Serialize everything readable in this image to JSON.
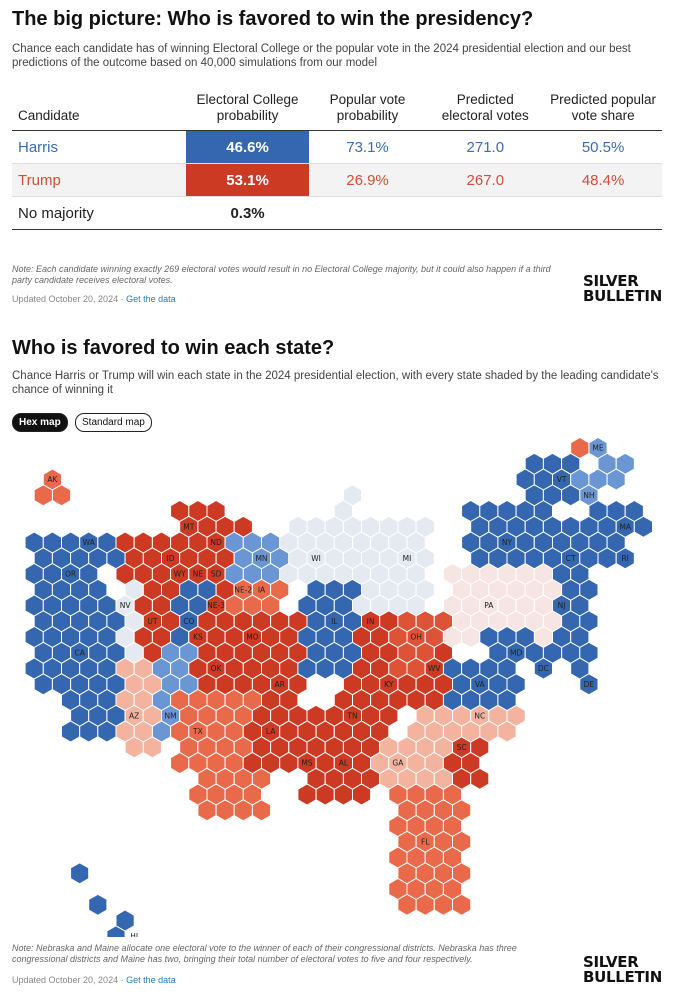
{
  "section1": {
    "title": "The big picture: Who is favored to win the presidency?",
    "subtitle": "Chance each candidate has of winning Electoral College or the popular vote in the 2024 presidential election and our best predictions of the outcome based on 40,000 simulations from our model"
  },
  "table": {
    "headers": [
      "Candidate",
      "Electoral College probability",
      "Popular vote probability",
      "Predicted electoral votes",
      "Predicted popular vote share"
    ],
    "rows": [
      {
        "candidate": "Harris",
        "ec_prob": "46.6%",
        "pop_prob": "73.1%",
        "ev": "271.0",
        "share": "50.5%"
      },
      {
        "candidate": "Trump",
        "ec_prob": "53.1%",
        "pop_prob": "26.9%",
        "ev": "267.0",
        "share": "48.4%"
      },
      {
        "candidate": "No majority",
        "ec_prob": "0.3%",
        "pop_prob": "",
        "ev": "",
        "share": ""
      }
    ],
    "note": "Note: Each candidate winning exactly 269 electoral votes would result in no Electoral College majority, but it could also happen if a third party candidate receives electoral votes.",
    "updated": "Updated October 20, 2024",
    "link": "Get the data"
  },
  "logo": {
    "line1": "SILVER",
    "line2": "BULLETIN"
  },
  "section2": {
    "title": "Who is favored to win each state?",
    "subtitle": "Chance Harris or Trump will win each state in the 2024 presidential election, with every state shaded by the leading candidate's chance of winning it",
    "tab_hex": "Hex map",
    "tab_standard": "Standard map",
    "note": "Note: Nebraska and Maine allocate one electoral vote to the winner of each of their congressional districts. Nebraska has three congressional districts and Maine has two, bringing their total number of electoral votes to five and four respectively.",
    "updated": "Updated October 20, 2024",
    "link": "Get the data"
  },
  "colors": {
    "dem_solid": "#3467b0",
    "dem_likely": "#6a96d4",
    "dem_lean": "#a9c3e8",
    "tossup_dem": "#e4e9f2",
    "tossup_rep": "#f6e5e2",
    "rep_lean": "#f4b39e",
    "rep_likely": "#e96a4b",
    "rep_solid": "#cc3a24",
    "rep_mid": "#dd5338"
  },
  "chart_data": {
    "type": "table",
    "title": "The big picture: Who is favored to win the presidency?",
    "columns": [
      "Candidate",
      "Electoral College probability",
      "Popular vote probability",
      "Predicted electoral votes",
      "Predicted popular vote share"
    ],
    "rows": [
      [
        "Harris",
        46.6,
        73.1,
        271.0,
        50.5
      ],
      [
        "Trump",
        53.1,
        26.9,
        267.0,
        48.4
      ],
      [
        "No majority",
        0.3,
        null,
        null,
        null
      ]
    ],
    "map": {
      "type": "hex-map",
      "title": "Who is favored to win each state?",
      "states": [
        {
          "label": "AK",
          "color": "rep_likely"
        },
        {
          "label": "HI",
          "color": "dem_solid"
        },
        {
          "label": "WA",
          "color": "dem_solid"
        },
        {
          "label": "OR",
          "color": "dem_solid"
        },
        {
          "label": "CA",
          "color": "dem_solid"
        },
        {
          "label": "NV",
          "color": "tossup_dem"
        },
        {
          "label": "ID",
          "color": "rep_solid"
        },
        {
          "label": "MT",
          "color": "rep_solid"
        },
        {
          "label": "WY",
          "color": "rep_solid"
        },
        {
          "label": "UT",
          "color": "rep_solid"
        },
        {
          "label": "CO",
          "color": "dem_solid"
        },
        {
          "label": "AZ",
          "color": "rep_lean"
        },
        {
          "label": "NM",
          "color": "dem_likely"
        },
        {
          "label": "ND",
          "color": "rep_solid"
        },
        {
          "label": "SD",
          "color": "rep_solid"
        },
        {
          "label": "NE",
          "color": "rep_solid"
        },
        {
          "label": "NE-2",
          "color": "dem_solid"
        },
        {
          "label": "NE-3",
          "color": "rep_solid"
        },
        {
          "label": "KS",
          "color": "rep_solid"
        },
        {
          "label": "OK",
          "color": "rep_solid"
        },
        {
          "label": "TX",
          "color": "rep_likely"
        },
        {
          "label": "MN",
          "color": "dem_likely"
        },
        {
          "label": "IA",
          "color": "rep_likely"
        },
        {
          "label": "MO",
          "color": "rep_solid"
        },
        {
          "label": "AR",
          "color": "rep_solid"
        },
        {
          "label": "LA",
          "color": "rep_solid"
        },
        {
          "label": "WI",
          "color": "tossup_dem"
        },
        {
          "label": "IL",
          "color": "dem_solid"
        },
        {
          "label": "MI",
          "color": "tossup_dem"
        },
        {
          "label": "IN",
          "color": "rep_solid"
        },
        {
          "label": "OH",
          "color": "rep_mid"
        },
        {
          "label": "KY",
          "color": "rep_solid"
        },
        {
          "label": "TN",
          "color": "rep_solid"
        },
        {
          "label": "MS",
          "color": "rep_solid"
        },
        {
          "label": "AL",
          "color": "rep_solid"
        },
        {
          "label": "GA",
          "color": "rep_lean"
        },
        {
          "label": "FL",
          "color": "rep_likely"
        },
        {
          "label": "SC",
          "color": "rep_solid"
        },
        {
          "label": "NC",
          "color": "rep_lean"
        },
        {
          "label": "VA",
          "color": "dem_solid"
        },
        {
          "label": "WV",
          "color": "rep_solid"
        },
        {
          "label": "PA",
          "color": "tossup_rep"
        },
        {
          "label": "NY",
          "color": "dem_solid"
        },
        {
          "label": "NJ",
          "color": "dem_solid"
        },
        {
          "label": "DE",
          "color": "dem_solid"
        },
        {
          "label": "MD",
          "color": "dem_solid"
        },
        {
          "label": "DC",
          "color": "dem_solid"
        },
        {
          "label": "CT",
          "color": "dem_solid"
        },
        {
          "label": "RI",
          "color": "dem_solid"
        },
        {
          "label": "MA",
          "color": "dem_solid"
        },
        {
          "label": "VT",
          "color": "dem_solid"
        },
        {
          "label": "NH",
          "color": "dem_likely"
        },
        {
          "label": "ME",
          "color": "dem_likely"
        },
        {
          "label": "ME-2",
          "color": "rep_likely"
        }
      ]
    }
  }
}
